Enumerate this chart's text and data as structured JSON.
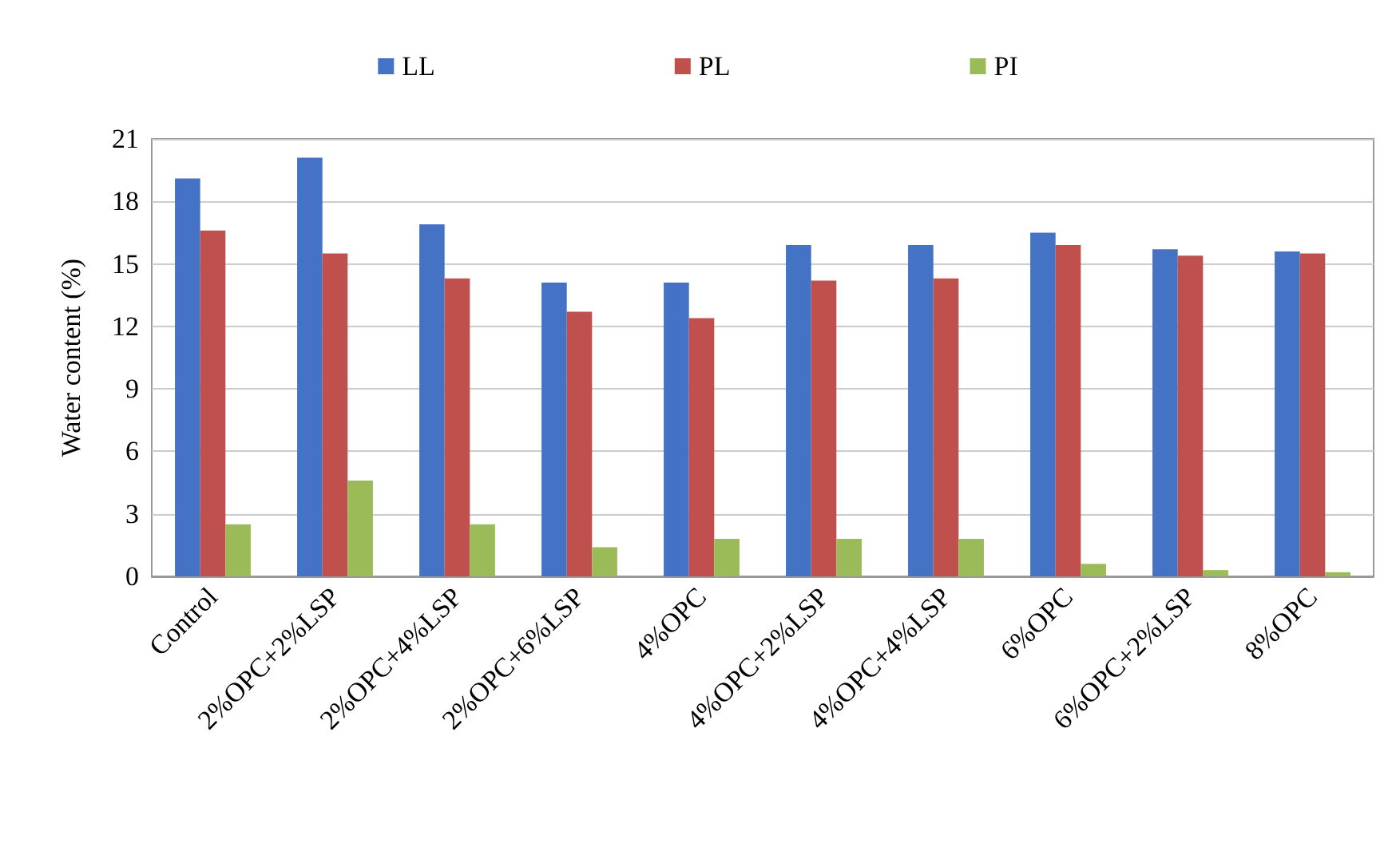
{
  "chart_data": {
    "type": "bar",
    "ylabel": "Water content (%)",
    "categories": [
      "Control",
      "2%OPC+2%LSP",
      "2%OPC+4%LSP",
      "2%OPC+6%LSP",
      "4%OPC",
      "4%OPC+2%LSP",
      "4%OPC+4%LSP",
      "6%OPC",
      "6%OPC+2%LSP",
      "8%OPC"
    ],
    "series": [
      {
        "name": "LL",
        "color": "#4472c4",
        "values": [
          19.1,
          20.1,
          16.9,
          14.1,
          14.1,
          15.9,
          15.9,
          16.5,
          15.7,
          15.6
        ]
      },
      {
        "name": "PL",
        "color": "#c0504d",
        "values": [
          16.6,
          15.5,
          14.3,
          12.7,
          12.4,
          14.2,
          14.3,
          15.9,
          15.4,
          15.5
        ]
      },
      {
        "name": "PI",
        "color": "#9bbb59",
        "values": [
          2.5,
          4.6,
          2.5,
          1.4,
          1.8,
          1.8,
          1.8,
          0.6,
          0.3,
          0.2
        ]
      }
    ],
    "ylim": [
      0,
      21
    ],
    "yticks": [
      0,
      3,
      6,
      9,
      12,
      15,
      18,
      21
    ],
    "grid": "y",
    "legend": "top"
  }
}
